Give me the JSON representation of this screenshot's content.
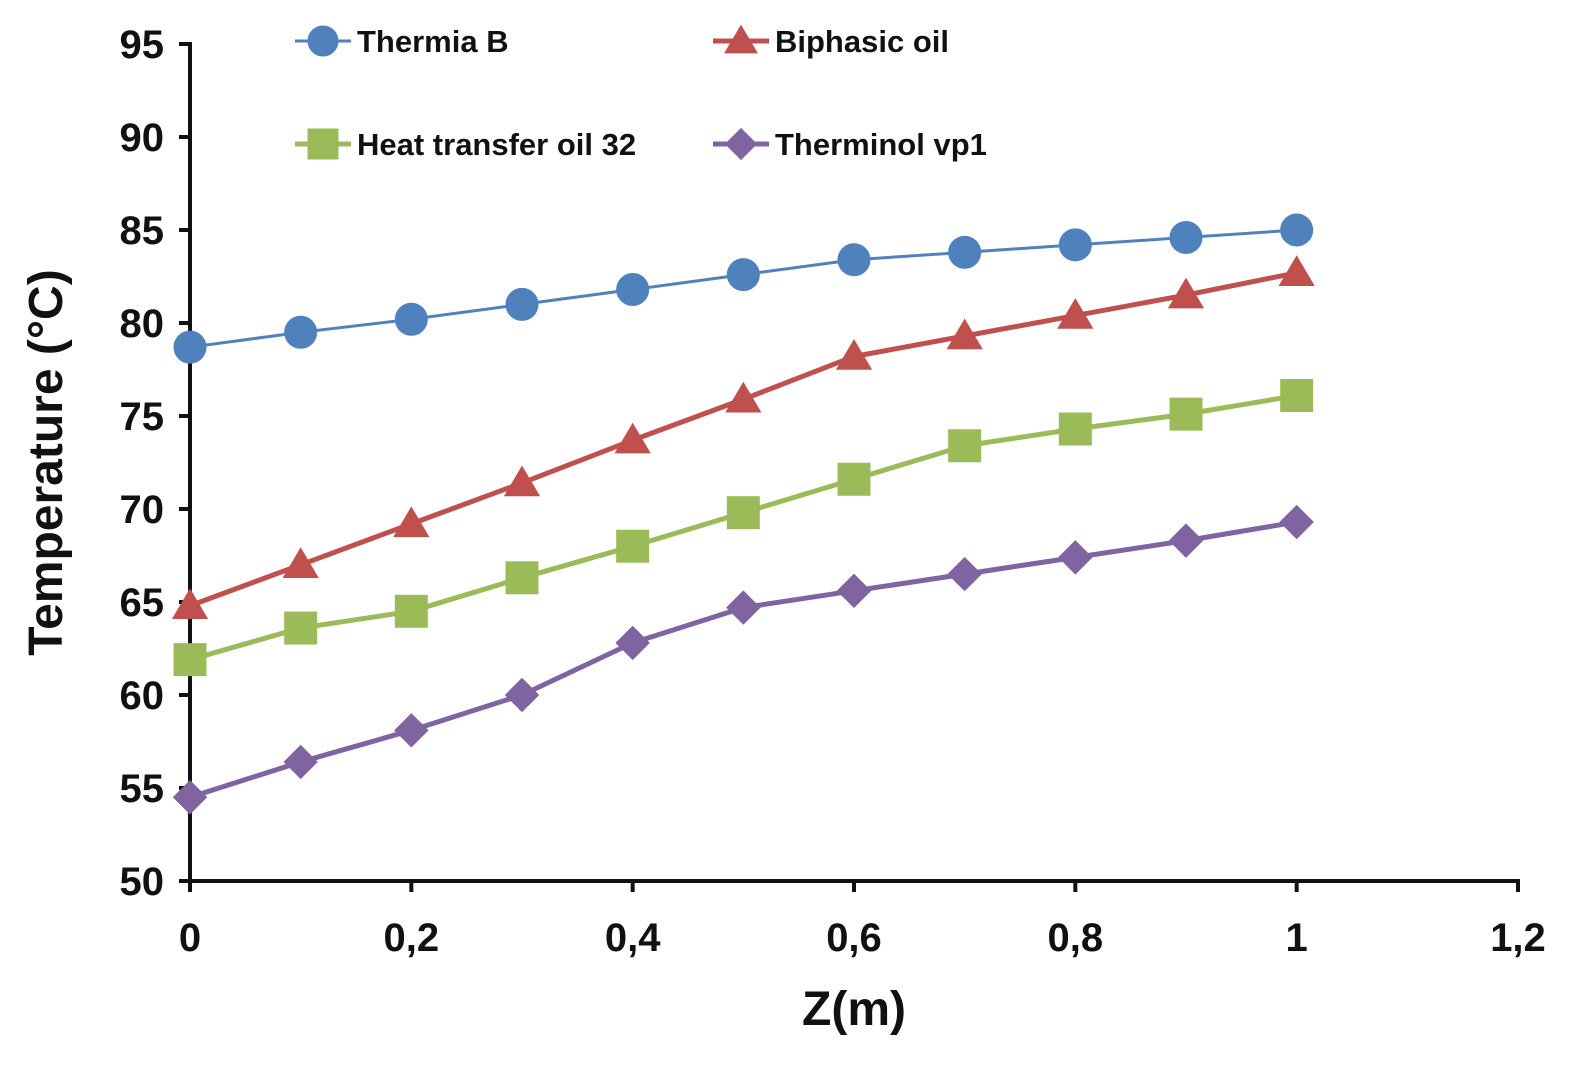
{
  "chart_data": {
    "type": "line",
    "title": "",
    "xlabel": "Z(m)",
    "ylabel": "Temperature (°C)",
    "xlim": [
      0,
      1.2
    ],
    "ylim": [
      50,
      95
    ],
    "xticks": [
      0,
      0.2,
      0.4,
      0.6,
      0.8,
      1,
      1.2
    ],
    "xtick_labels": [
      "0",
      "0,2",
      "0,4",
      "0,6",
      "0,8",
      "1",
      "1,2"
    ],
    "yticks": [
      50,
      55,
      60,
      65,
      70,
      75,
      80,
      85,
      90,
      95
    ],
    "ytick_labels": [
      "50",
      "55",
      "60",
      "65",
      "70",
      "75",
      "80",
      "85",
      "90",
      "95"
    ],
    "grid": false,
    "legend_position": "top",
    "x": [
      0,
      0.1,
      0.2,
      0.3,
      0.4,
      0.5,
      0.6,
      0.7,
      0.8,
      0.9,
      1.0
    ],
    "series": [
      {
        "name": "Thermia B",
        "color": "#4f81bd",
        "marker": "circle",
        "values": [
          78.7,
          79.5,
          80.2,
          81.0,
          81.8,
          82.6,
          83.4,
          83.8,
          84.2,
          84.6,
          85.0
        ]
      },
      {
        "name": "Biphasic oil",
        "color": "#c0504d",
        "marker": "triangle",
        "values": [
          64.8,
          67.0,
          69.2,
          71.4,
          73.7,
          75.9,
          78.2,
          79.3,
          80.4,
          81.5,
          82.7
        ]
      },
      {
        "name": "Heat transfer oil 32",
        "color": "#9bbb59",
        "marker": "square",
        "values": [
          61.9,
          63.6,
          64.5,
          66.3,
          68.0,
          69.8,
          71.6,
          73.4,
          74.3,
          75.1,
          76.1
        ]
      },
      {
        "name": "Therminol vp1",
        "color": "#8064a2",
        "marker": "diamond",
        "values": [
          54.5,
          56.4,
          58.1,
          60.0,
          62.8,
          64.7,
          65.6,
          66.5,
          67.4,
          68.3,
          69.3
        ]
      }
    ]
  }
}
